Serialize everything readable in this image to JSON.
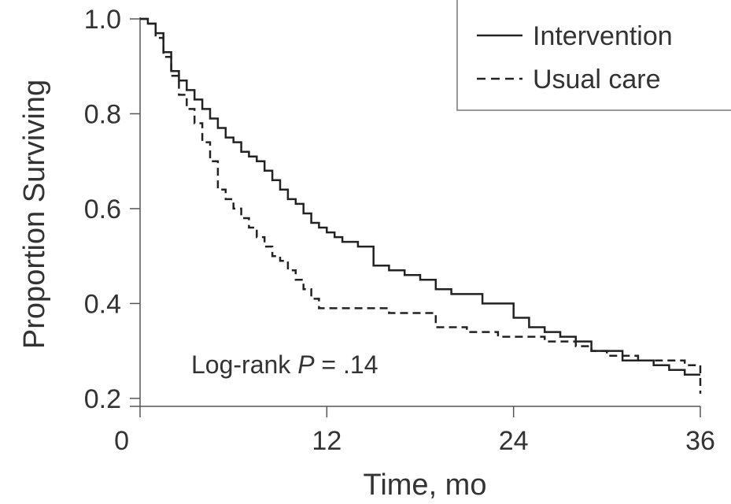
{
  "chart_data": {
    "type": "line",
    "step": true,
    "xlabel": "Time, mo",
    "ylabel": "Proportion Surviving",
    "xlim": [
      0,
      36
    ],
    "ylim": [
      0.15,
      1.0
    ],
    "xticks": [
      0,
      12,
      24,
      36
    ],
    "yticks": [
      0.2,
      0.4,
      0.6,
      0.8,
      1.0
    ],
    "xtick_labels": [
      "0",
      "12",
      "24",
      "36"
    ],
    "ytick_labels": [
      "0.2",
      "0.4",
      "0.6",
      "0.8",
      "1.0"
    ],
    "grid": false,
    "legend_position": "top-right",
    "annotation": {
      "prefix": "Log-rank ",
      "var": "P",
      "suffix": " = .14"
    },
    "series": [
      {
        "name": "Intervention",
        "style": "solid",
        "color": "#222222",
        "x": [
          0,
          0.5,
          1,
          1.5,
          2,
          2.5,
          3,
          3.5,
          4,
          4.5,
          5,
          5.5,
          6,
          6.5,
          7,
          7.5,
          8,
          8.5,
          9,
          9.5,
          10,
          10.5,
          11,
          11.5,
          12,
          12.5,
          13,
          14,
          15,
          16,
          17,
          18,
          19,
          20,
          21,
          22,
          23,
          24,
          25,
          26,
          27,
          28,
          29,
          30,
          31,
          32,
          33,
          34,
          35,
          36
        ],
        "y": [
          1.0,
          0.99,
          0.97,
          0.93,
          0.89,
          0.87,
          0.85,
          0.83,
          0.81,
          0.79,
          0.77,
          0.75,
          0.74,
          0.72,
          0.71,
          0.7,
          0.68,
          0.66,
          0.64,
          0.62,
          0.61,
          0.59,
          0.57,
          0.56,
          0.55,
          0.54,
          0.53,
          0.52,
          0.48,
          0.47,
          0.46,
          0.45,
          0.43,
          0.42,
          0.42,
          0.4,
          0.4,
          0.37,
          0.35,
          0.34,
          0.33,
          0.32,
          0.3,
          0.3,
          0.28,
          0.28,
          0.27,
          0.26,
          0.25,
          0.25
        ]
      },
      {
        "name": "Usual care",
        "style": "dashed",
        "color": "#222222",
        "x": [
          0,
          0.5,
          1,
          1.5,
          2,
          2.5,
          3,
          3.5,
          4,
          4.5,
          5,
          5.5,
          6,
          6.5,
          7,
          7.5,
          8,
          8.5,
          9,
          9.5,
          10,
          10.5,
          11,
          11.5,
          12,
          12.5,
          13,
          14,
          15,
          16,
          17,
          18,
          19,
          20,
          21,
          22,
          23,
          24,
          25,
          26,
          27,
          28,
          29,
          30,
          31,
          32,
          33,
          34,
          35,
          36
        ],
        "y": [
          1.0,
          0.99,
          0.96,
          0.92,
          0.88,
          0.84,
          0.81,
          0.78,
          0.74,
          0.7,
          0.64,
          0.62,
          0.6,
          0.58,
          0.56,
          0.54,
          0.52,
          0.5,
          0.49,
          0.47,
          0.45,
          0.43,
          0.41,
          0.39,
          0.39,
          0.39,
          0.39,
          0.39,
          0.39,
          0.38,
          0.38,
          0.38,
          0.35,
          0.35,
          0.34,
          0.34,
          0.33,
          0.33,
          0.33,
          0.32,
          0.32,
          0.31,
          0.3,
          0.29,
          0.29,
          0.28,
          0.28,
          0.28,
          0.27,
          0.21
        ]
      }
    ]
  }
}
